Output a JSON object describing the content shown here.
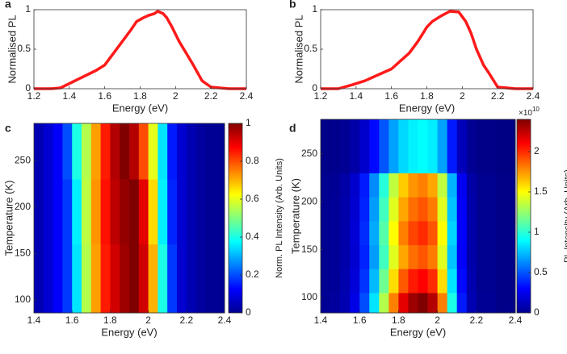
{
  "chart_data": [
    {
      "type": "line",
      "panel_label": "a",
      "xlabel": "Energy (eV)",
      "ylabel": "Normalised PL",
      "x": [
        1.2,
        1.3,
        1.35,
        1.45,
        1.55,
        1.6,
        1.65,
        1.7,
        1.75,
        1.78,
        1.82,
        1.85,
        1.88,
        1.9,
        1.93,
        1.95,
        1.98,
        2.02,
        2.06,
        2.1,
        2.15,
        2.2,
        2.3,
        2.4
      ],
      "series": [
        {
          "color": "#ff1a1a",
          "values": [
            0,
            0,
            0.01,
            0.12,
            0.23,
            0.3,
            0.45,
            0.6,
            0.75,
            0.85,
            0.9,
            0.93,
            0.95,
            0.98,
            0.95,
            0.9,
            0.78,
            0.6,
            0.45,
            0.3,
            0.1,
            0.02,
            0,
            0
          ]
        }
      ],
      "xlim": [
        1.2,
        2.4
      ],
      "ylim": [
        0,
        1
      ],
      "xticks": [
        1.2,
        1.4,
        1.6,
        1.8,
        2,
        2.2,
        2.4
      ],
      "yticks": [
        0,
        0.5,
        1
      ]
    },
    {
      "type": "line",
      "panel_label": "b",
      "xlabel": "Energy (eV)",
      "ylabel": "Normalised PL",
      "x": [
        1.2,
        1.3,
        1.38,
        1.45,
        1.55,
        1.6,
        1.65,
        1.7,
        1.75,
        1.8,
        1.83,
        1.88,
        1.93,
        1.98,
        2.02,
        2.05,
        2.08,
        2.12,
        2.15,
        2.2,
        2.3,
        2.4
      ],
      "series": [
        {
          "color": "#ff1a1a",
          "values": [
            0,
            0,
            0.05,
            0.1,
            0.2,
            0.25,
            0.35,
            0.45,
            0.6,
            0.78,
            0.85,
            0.92,
            0.98,
            0.97,
            0.85,
            0.7,
            0.5,
            0.3,
            0.2,
            0.02,
            0,
            0
          ]
        }
      ],
      "xlim": [
        1.2,
        2.4
      ],
      "ylim": [
        0,
        1
      ],
      "xticks": [
        1.2,
        1.4,
        1.6,
        1.8,
        2,
        2.2,
        2.4
      ],
      "yticks": [
        0,
        0.5,
        1
      ]
    },
    {
      "type": "heatmap",
      "panel_label": "c",
      "xlabel": "Energy (eV)",
      "ylabel": "Temperature (K)",
      "x_edges": [
        1.4,
        1.45,
        1.5,
        1.55,
        1.6,
        1.65,
        1.7,
        1.75,
        1.8,
        1.85,
        1.9,
        1.95,
        2,
        2.05,
        2.1,
        2.15,
        2.2,
        2.25,
        2.3,
        2.35,
        2.4
      ],
      "y_edges": [
        86,
        160,
        230,
        290
      ],
      "z": [
        [
          0.05,
          0.08,
          0.12,
          0.18,
          0.35,
          0.55,
          0.72,
          0.85,
          0.92,
          0.97,
          1.0,
          0.92,
          0.7,
          0.4,
          0.18,
          0.08,
          0.05,
          0.03,
          0.02,
          0.02
        ],
        [
          0.05,
          0.08,
          0.12,
          0.18,
          0.36,
          0.56,
          0.73,
          0.86,
          0.94,
          0.98,
          1.0,
          0.9,
          0.66,
          0.36,
          0.16,
          0.08,
          0.05,
          0.03,
          0.02,
          0.02
        ],
        [
          0.05,
          0.08,
          0.12,
          0.2,
          0.4,
          0.55,
          0.72,
          0.85,
          0.95,
          1.0,
          0.95,
          0.8,
          0.6,
          0.35,
          0.15,
          0.08,
          0.05,
          0.03,
          0.02,
          0.02
        ]
      ],
      "xlim": [
        1.4,
        2.4
      ],
      "ylim": [
        86,
        290
      ],
      "xticks": [
        1.4,
        1.6,
        1.8,
        2,
        2.2,
        2.4
      ],
      "yticks": [
        100,
        150,
        200,
        250
      ],
      "colorbar": {
        "label": "Norm. PL Intensity (Arb. Units)",
        "lim": [
          0,
          1
        ],
        "ticks": [
          0,
          0.2,
          0.4,
          0.6,
          0.8,
          1
        ]
      }
    },
    {
      "type": "heatmap",
      "panel_label": "d",
      "xlabel": "Energy (eV)",
      "ylabel": "Temperature (K)",
      "x_edges": [
        1.4,
        1.45,
        1.5,
        1.55,
        1.6,
        1.65,
        1.7,
        1.75,
        1.8,
        1.85,
        1.9,
        1.95,
        2,
        2.05,
        2.1,
        2.15,
        2.2,
        2.25,
        2.3,
        2.35,
        2.4
      ],
      "y_edges": [
        84,
        105,
        130,
        155,
        180,
        205,
        230,
        286
      ],
      "z": [
        [
          0.05,
          0.07,
          0.12,
          0.24,
          0.48,
          0.84,
          1.32,
          1.8,
          2.16,
          2.33,
          2.4,
          2.28,
          1.8,
          0.96,
          0.36,
          0.12,
          0.05,
          0.05,
          0.02,
          0.02
        ],
        [
          0.04,
          0.06,
          0.11,
          0.21,
          0.42,
          0.74,
          1.16,
          1.58,
          1.89,
          2.04,
          2.1,
          2.0,
          1.58,
          0.84,
          0.32,
          0.11,
          0.04,
          0.04,
          0.02,
          0.02
        ],
        [
          0.04,
          0.06,
          0.1,
          0.19,
          0.38,
          0.67,
          1.05,
          1.43,
          1.71,
          1.84,
          1.9,
          1.81,
          1.43,
          0.76,
          0.29,
          0.1,
          0.04,
          0.04,
          0.02,
          0.02
        ],
        [
          0.04,
          0.06,
          0.1,
          0.2,
          0.4,
          0.7,
          1.1,
          1.5,
          1.8,
          1.94,
          2.0,
          1.9,
          1.5,
          0.8,
          0.3,
          0.1,
          0.04,
          0.04,
          0.02,
          0.02
        ],
        [
          0.04,
          0.06,
          0.1,
          0.19,
          0.38,
          0.67,
          1.05,
          1.43,
          1.71,
          1.84,
          1.9,
          1.81,
          1.43,
          0.76,
          0.29,
          0.1,
          0.04,
          0.04,
          0.02,
          0.02
        ],
        [
          0.04,
          0.05,
          0.09,
          0.18,
          0.36,
          0.63,
          0.99,
          1.35,
          1.62,
          1.75,
          1.8,
          1.71,
          1.35,
          0.72,
          0.27,
          0.09,
          0.04,
          0.04,
          0.02,
          0.02
        ],
        [
          0.02,
          0.03,
          0.05,
          0.09,
          0.18,
          0.32,
          0.5,
          0.68,
          0.81,
          0.87,
          0.9,
          0.86,
          0.68,
          0.36,
          0.14,
          0.05,
          0.02,
          0.02,
          0.01,
          0.01
        ]
      ],
      "xlim": [
        1.4,
        2.4
      ],
      "ylim": [
        84,
        286
      ],
      "xticks": [
        1.4,
        1.6,
        1.8,
        2,
        2.2,
        2.4
      ],
      "yticks": [
        100,
        150,
        200,
        250
      ],
      "colorbar": {
        "label": "PL Intensity (Arb. Units)",
        "lim": [
          0,
          2.4
        ],
        "ticks": [
          0,
          0.5,
          1,
          1.5,
          2
        ],
        "scale_base": "×10",
        "scale_exp": "10"
      }
    }
  ]
}
